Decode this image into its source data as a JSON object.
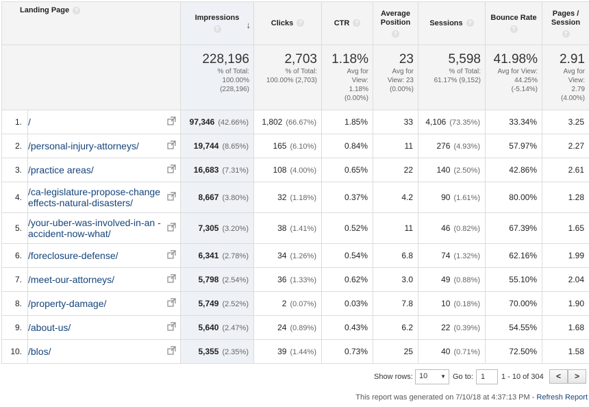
{
  "columns": {
    "landing_page": "Landing Page",
    "impressions": "Impressions",
    "clicks": "Clicks",
    "ctr": "CTR",
    "avg_position": [
      "Average",
      "Position"
    ],
    "sessions": "Sessions",
    "bounce_rate": "Bounce Rate",
    "pages_session": [
      "Pages /",
      "Session"
    ]
  },
  "totals": {
    "impressions": {
      "value": "228,196",
      "sub": [
        "% of Total:",
        "100.00%",
        "(228,196)"
      ]
    },
    "clicks": {
      "value": "2,703",
      "sub": [
        "% of Total:",
        "100.00% (2,703)"
      ]
    },
    "ctr": {
      "value": "1.18%",
      "sub": [
        "Avg for",
        "View:",
        "1.18%",
        "(0.00%)"
      ]
    },
    "avg_position": {
      "value": "23",
      "sub": [
        "Avg for",
        "View: 23",
        "(0.00%)"
      ]
    },
    "sessions": {
      "value": "5,598",
      "sub": [
        "% of Total:",
        "61.17% (9,152)"
      ]
    },
    "bounce_rate": {
      "value": "41.98%",
      "sub": [
        "Avg for View:",
        "44.25%",
        "(-5.14%)"
      ]
    },
    "pages_session": {
      "value": "2.91",
      "sub": [
        "Avg for",
        "View:",
        "2.79",
        "(4.00%)"
      ]
    }
  },
  "rows": [
    {
      "num": "1.",
      "page": "/",
      "impressions": "97,346",
      "imp_pct": "(42.66%)",
      "clicks": "1,802",
      "clicks_pct": "(66.67%)",
      "ctr": "1.85%",
      "position": "33",
      "sessions": "4,106",
      "sessions_pct": "(73.35%)",
      "bounce": "33.34%",
      "pages": "3.25"
    },
    {
      "num": "2.",
      "page": "/personal-injury-attorneys/",
      "impressions": "19,744",
      "imp_pct": "(8.65%)",
      "clicks": "165",
      "clicks_pct": "(6.10%)",
      "ctr": "0.84%",
      "position": "11",
      "sessions": "276",
      "sessions_pct": "(4.93%)",
      "bounce": "57.97%",
      "pages": "2.27"
    },
    {
      "num": "3.",
      "page": "/practice areas/",
      "impressions": "16,683",
      "imp_pct": "(7.31%)",
      "clicks": "108",
      "clicks_pct": "(4.00%)",
      "ctr": "0.65%",
      "position": "22",
      "sessions": "140",
      "sessions_pct": "(2.50%)",
      "bounce": "42.86%",
      "pages": "2.61"
    },
    {
      "num": "4.",
      "page": "/ca-legislature-propose-change effects-natural-disasters/",
      "impressions": "8,667",
      "imp_pct": "(3.80%)",
      "clicks": "32",
      "clicks_pct": "(1.18%)",
      "ctr": "0.37%",
      "position": "4.2",
      "sessions": "90",
      "sessions_pct": "(1.61%)",
      "bounce": "80.00%",
      "pages": "1.28"
    },
    {
      "num": "5.",
      "page": "/your-uber-was-involved-in-an -accident-now-what/",
      "impressions": "7,305",
      "imp_pct": "(3.20%)",
      "clicks": "38",
      "clicks_pct": "(1.41%)",
      "ctr": "0.52%",
      "position": "11",
      "sessions": "46",
      "sessions_pct": "(0.82%)",
      "bounce": "67.39%",
      "pages": "1.65"
    },
    {
      "num": "6.",
      "page": "/foreclosure-defense/",
      "impressions": "6,341",
      "imp_pct": "(2.78%)",
      "clicks": "34",
      "clicks_pct": "(1.26%)",
      "ctr": "0.54%",
      "position": "6.8",
      "sessions": "74",
      "sessions_pct": "(1.32%)",
      "bounce": "62.16%",
      "pages": "1.99"
    },
    {
      "num": "7.",
      "page": "/meet-our-attorneys/",
      "impressions": "5,798",
      "imp_pct": "(2.54%)",
      "clicks": "36",
      "clicks_pct": "(1.33%)",
      "ctr": "0.62%",
      "position": "3.0",
      "sessions": "49",
      "sessions_pct": "(0.88%)",
      "bounce": "55.10%",
      "pages": "2.04"
    },
    {
      "num": "8.",
      "page": "/property-damage/",
      "impressions": "5,749",
      "imp_pct": "(2.52%)",
      "clicks": "2",
      "clicks_pct": "(0.07%)",
      "ctr": "0.03%",
      "position": "7.8",
      "sessions": "10",
      "sessions_pct": "(0.18%)",
      "bounce": "70.00%",
      "pages": "1.90"
    },
    {
      "num": "9.",
      "page": "/about-us/",
      "impressions": "5,640",
      "imp_pct": "(2.47%)",
      "clicks": "24",
      "clicks_pct": "(0.89%)",
      "ctr": "0.43%",
      "position": "6.2",
      "sessions": "22",
      "sessions_pct": "(0.39%)",
      "bounce": "54.55%",
      "pages": "1.68"
    },
    {
      "num": "10.",
      "page": "/blos/",
      "impressions": "5,355",
      "imp_pct": "(2.35%)",
      "clicks": "39",
      "clicks_pct": "(1.44%)",
      "ctr": "0.73%",
      "position": "25",
      "sessions": "40",
      "sessions_pct": "(0.71%)",
      "bounce": "72.50%",
      "pages": "1.58"
    }
  ],
  "footer": {
    "show_rows_label": "Show rows:",
    "show_rows_value": "10",
    "goto_label": "Go to:",
    "goto_value": "1",
    "range": "1 - 10 of 304",
    "prev": "<",
    "next": ">",
    "generated": "This report was generated on 7/10/18 at 4:37:13 PM -",
    "refresh": "Refresh Report"
  },
  "colors": {
    "link": "#14447a",
    "header_bg": "#f4f4f4",
    "sorted_bg": "#eef1f5"
  }
}
